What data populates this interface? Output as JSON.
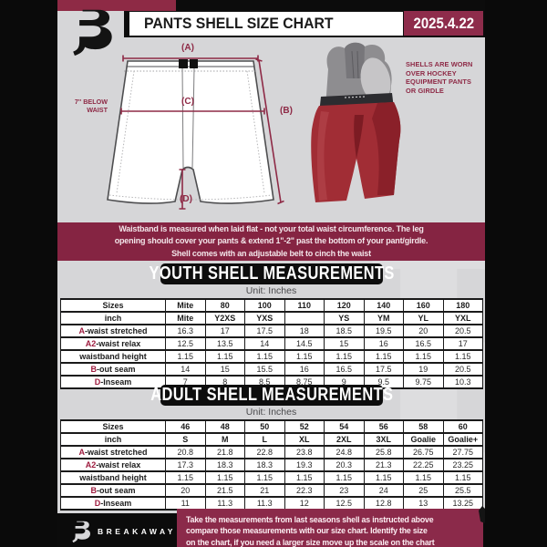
{
  "colors": {
    "maroon": "#852442",
    "maroon_bright": "#8e2c4b",
    "black": "#0c0c0c",
    "page_gray": "#d6d6d8",
    "accent_red_prefix": "#9e1c3f",
    "shell_red": "#a12d35"
  },
  "header": {
    "title": "PANTS SHELL SIZE CHART",
    "date": "2025.4.22"
  },
  "diagram": {
    "label_a": "(A)",
    "label_b": "(B)",
    "label_c": "(C)",
    "label_d": "(D)",
    "below_waist_lines": [
      "7'' BELOW",
      "WAIST"
    ],
    "shells_note_lines": [
      "SHELLS ARE WORN",
      "OVER HOCKEY",
      "EQUIPMENT PANTS",
      "OR GIRDLE"
    ]
  },
  "info_banner": {
    "lines": [
      "Waistband is measured when laid flat - not your total waist circumference. The leg",
      "opening should cover your pants & extend 1''-2'' past the bottom of your pant/girdle.",
      "Shell comes with an adjustable belt to cinch the waist"
    ]
  },
  "youth": {
    "title": "YOUTH SHELL MEASUREMENTS",
    "unit": "Unit: Inches",
    "table": {
      "rows": [
        {
          "label": "Sizes",
          "prefix": "",
          "bold": true,
          "values": [
            "Mite",
            "80",
            "100",
            "110",
            "120",
            "140",
            "160",
            "180"
          ]
        },
        {
          "label": "inch",
          "prefix": "",
          "bold": true,
          "values": [
            "Mite",
            "Y2XS",
            "YXS",
            "",
            "YS",
            "YM",
            "YL",
            "YXL"
          ]
        },
        {
          "label": "-waist stretched",
          "prefix": "A",
          "values": [
            "16.3",
            "17",
            "17.5",
            "18",
            "18.5",
            "19.5",
            "20",
            "20.5"
          ]
        },
        {
          "label": "-waist relax",
          "prefix": "A2",
          "values": [
            "12.5",
            "13.5",
            "14",
            "14.5",
            "15",
            "16",
            "16.5",
            "17"
          ]
        },
        {
          "label": "waistband height",
          "prefix": "",
          "values": [
            "1.15",
            "1.15",
            "1.15",
            "1.15",
            "1.15",
            "1.15",
            "1.15",
            "1.15"
          ]
        },
        {
          "label": "-out seam",
          "prefix": "B",
          "values": [
            "14",
            "15",
            "15.5",
            "16",
            "16.5",
            "17.5",
            "19",
            "20.5"
          ]
        },
        {
          "label": "-Inseam",
          "prefix": "D",
          "values": [
            "7",
            "8",
            "8.5",
            "8.75",
            "9",
            "9.5",
            "9.75",
            "10.3"
          ]
        }
      ]
    }
  },
  "adult": {
    "title": "ADULT SHELL MEASUREMENTS",
    "unit": "Unit: Inches",
    "table": {
      "rows": [
        {
          "label": "Sizes",
          "prefix": "",
          "bold": true,
          "values": [
            "46",
            "48",
            "50",
            "52",
            "54",
            "56",
            "58",
            "60"
          ]
        },
        {
          "label": "inch",
          "prefix": "",
          "bold": true,
          "values": [
            "S",
            "M",
            "L",
            "XL",
            "2XL",
            "3XL",
            "Goalie",
            "Goalie+"
          ]
        },
        {
          "label": "-waist stretched",
          "prefix": "A",
          "values": [
            "20.8",
            "21.8",
            "22.8",
            "23.8",
            "24.8",
            "25.8",
            "26.75",
            "27.75"
          ]
        },
        {
          "label": "-waist relax",
          "prefix": "A2",
          "values": [
            "17.3",
            "18.3",
            "18.3",
            "19.3",
            "20.3",
            "21.3",
            "22.25",
            "23.25"
          ]
        },
        {
          "label": "waistband height",
          "prefix": "",
          "values": [
            "1.15",
            "1.15",
            "1.15",
            "1.15",
            "1.15",
            "1.15",
            "1.15",
            "1.15"
          ]
        },
        {
          "label": "-out seam",
          "prefix": "B",
          "values": [
            "20",
            "21.5",
            "21",
            "22.3",
            "23",
            "24",
            "25",
            "25.5"
          ]
        },
        {
          "label": "-Inseam",
          "prefix": "D",
          "values": [
            "11",
            "11.3",
            "11.3",
            "12",
            "12.5",
            "12.8",
            "13",
            "13.25"
          ]
        }
      ]
    }
  },
  "footer": {
    "brand": "BREAKAWAY",
    "note_lines": [
      "Take the measurements from last seasons shell as instructed above",
      "compare those measurements  with our size chart. Identify the size",
      "on the chart, if you need a larger size move up the scale on the chart"
    ]
  },
  "watermark": "B"
}
